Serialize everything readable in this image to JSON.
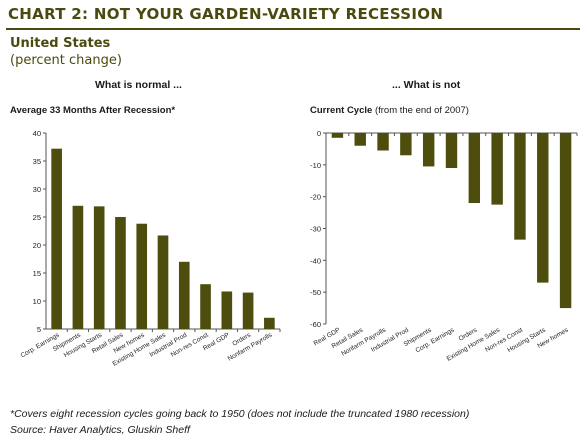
{
  "header": {
    "title": "CHART 2: NOT YOUR GARDEN-VARIETY RECESSION",
    "subtitle": "United States",
    "subtitle2": "(percent change)"
  },
  "panels": {
    "left_heading": "What is normal ...",
    "right_heading": "... What is not"
  },
  "colors": {
    "bar": "#4d4d0d",
    "accent": "#4a4a10"
  },
  "chart_data": [
    {
      "type": "bar",
      "title": "Average 33 Months After Recession*",
      "title_bold": "Average 33 Months After Recession*",
      "title_rest": "",
      "categories": [
        "Corp. Earnings",
        "Shipments",
        "Housing Starts",
        "Retail Sales",
        "New homes",
        "Existing Home Sales",
        "Industrial Prod",
        "Non-res Const",
        "Real GDP",
        "Orders",
        "Nonfarm Payrolls"
      ],
      "values": [
        37.2,
        27.0,
        26.9,
        25.0,
        23.8,
        21.7,
        17.0,
        13.0,
        11.7,
        11.5,
        7.0
      ],
      "ylim": [
        5,
        40
      ],
      "yticks": [
        5,
        10,
        15,
        20,
        25,
        30,
        35,
        40
      ],
      "grid": false
    },
    {
      "type": "bar",
      "title": "Current Cycle (from the end of 2007)",
      "title_bold": "Current Cycle",
      "title_rest": " (from the end of 2007)",
      "categories": [
        "Real GDP",
        "Retail Sales",
        "Nonfarm Payrolls",
        "Industrial Prod",
        "Shipments",
        "Corp. Earnings",
        "Orders",
        "Existing Home Sales",
        "Non-res Const",
        "Housing Starts",
        "New homes"
      ],
      "values": [
        -1.5,
        -4.0,
        -5.5,
        -7.0,
        -10.5,
        -11.0,
        -22.0,
        -22.5,
        -33.5,
        -47.0,
        -55.0
      ],
      "ylim": [
        -60,
        0
      ],
      "yticks": [
        0,
        -10,
        -20,
        -30,
        -40,
        -50,
        -60
      ],
      "grid": false
    }
  ],
  "footnote": "*Covers eight recession cycles going back to 1950 (does not include the truncated 1980 recession)",
  "source": "Source: Haver Analytics, Gluskin Sheff"
}
